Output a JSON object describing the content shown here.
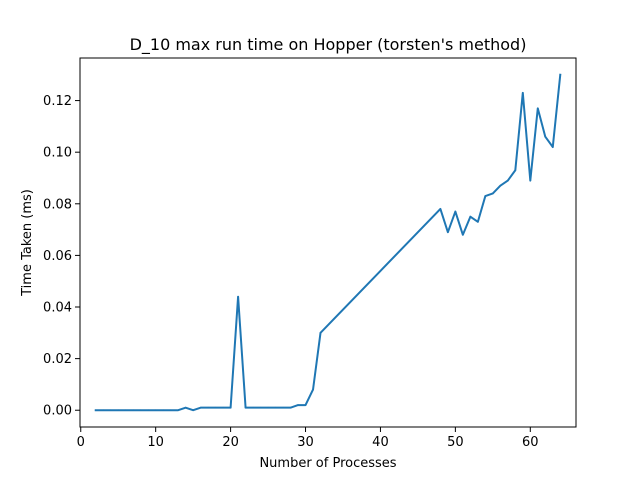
{
  "chart_data": {
    "type": "line",
    "title": "D_10 max run time on Hopper (torsten's method)",
    "xlabel": "Number of Processes",
    "ylabel": "Time Taken (ms)",
    "xlim": [
      -0.1,
      66.1
    ],
    "ylim": [
      -0.0065,
      0.1365
    ],
    "xticks": [
      0,
      10,
      20,
      30,
      40,
      50,
      60
    ],
    "yticks": [
      0.0,
      0.02,
      0.04,
      0.06,
      0.08,
      0.1,
      0.12
    ],
    "ytick_labels": [
      "0.00",
      "0.02",
      "0.04",
      "0.06",
      "0.08",
      "0.10",
      "0.12"
    ],
    "grid": false,
    "series": [
      {
        "color": "#1f77b4",
        "x": [
          2,
          3,
          4,
          5,
          6,
          7,
          8,
          9,
          10,
          11,
          12,
          13,
          14,
          15,
          16,
          17,
          18,
          19,
          20,
          21,
          22,
          23,
          24,
          25,
          26,
          27,
          28,
          29,
          30,
          31,
          32,
          48,
          49,
          50,
          51,
          52,
          53,
          54,
          55,
          56,
          57,
          58,
          59,
          60,
          61,
          62,
          63,
          64
        ],
        "y": [
          0.0,
          0.0,
          0.0,
          0.0,
          0.0,
          0.0,
          0.0,
          0.0,
          0.0,
          0.0,
          0.0,
          0.0,
          0.001,
          0.0,
          0.001,
          0.001,
          0.001,
          0.001,
          0.001,
          0.044,
          0.001,
          0.001,
          0.001,
          0.001,
          0.001,
          0.001,
          0.001,
          0.002,
          0.002,
          0.008,
          0.03,
          0.078,
          0.069,
          0.077,
          0.068,
          0.075,
          0.073,
          0.083,
          0.084,
          0.087,
          0.089,
          0.093,
          0.123,
          0.089,
          0.117,
          0.106,
          0.102,
          0.13
        ]
      }
    ]
  }
}
